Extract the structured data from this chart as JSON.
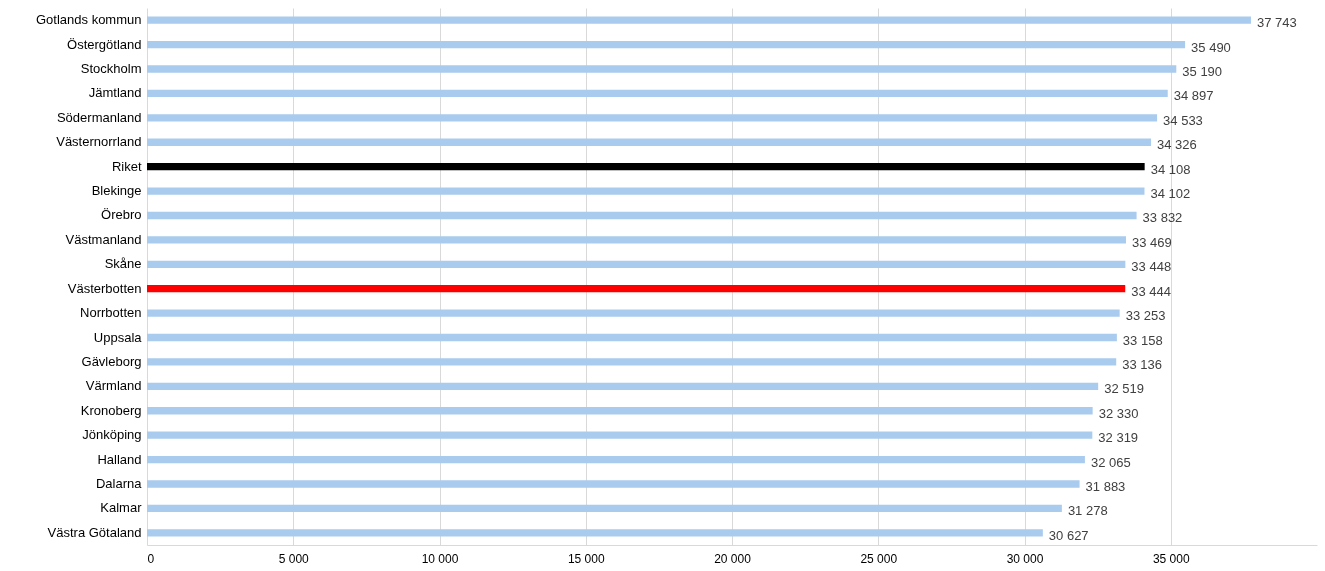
{
  "chart_data": {
    "type": "bar",
    "orientation": "horizontal",
    "categories": [
      "Gotlands kommun",
      "Östergötland",
      "Stockholm",
      "Jämtland",
      "Södermanland",
      "Västernorrland",
      "Riket",
      "Blekinge",
      "Örebro",
      "Västmanland",
      "Skåne",
      "Västerbotten",
      "Norrbotten",
      "Uppsala",
      "Gävleborg",
      "Värmland",
      "Kronoberg",
      "Jönköping",
      "Halland",
      "Dalarna",
      "Kalmar",
      "Västra Götaland"
    ],
    "values": [
      37743,
      35490,
      35190,
      34897,
      34533,
      34326,
      34108,
      34102,
      33832,
      33469,
      33448,
      33444,
      33253,
      33158,
      33136,
      32519,
      32330,
      32319,
      32065,
      31883,
      31278,
      30627
    ],
    "value_labels": [
      "37 743",
      "35 490",
      "35 190",
      "34 897",
      "34 533",
      "34 326",
      "34 108",
      "34 102",
      "33 832",
      "33 469",
      "33 448",
      "33 444",
      "33 253",
      "33 158",
      "33 136",
      "32 519",
      "32 330",
      "32 319",
      "32 065",
      "31 883",
      "31 278",
      "30 627"
    ],
    "colors": [
      "#a9cbee",
      "#a9cbee",
      "#a9cbee",
      "#a9cbee",
      "#a9cbee",
      "#a9cbee",
      "#000000",
      "#a9cbee",
      "#a9cbee",
      "#a9cbee",
      "#a9cbee",
      "#ff0000",
      "#a9cbee",
      "#a9cbee",
      "#a9cbee",
      "#a9cbee",
      "#a9cbee",
      "#a9cbee",
      "#a9cbee",
      "#a9cbee",
      "#a9cbee",
      "#a9cbee"
    ],
    "xticks": [
      0,
      {
        "value": 5000,
        "label": "5 000"
      },
      {
        "value": 10000,
        "label": "10 000"
      },
      {
        "value": 15000,
        "label": "15 000"
      },
      {
        "value": 20000,
        "label": "20 000"
      },
      {
        "value": 25000,
        "label": "25 000"
      },
      {
        "value": 30000,
        "label": "30 000"
      },
      {
        "value": 35000,
        "label": "35 000"
      }
    ],
    "xlim": [
      0,
      40000
    ],
    "grid": "x"
  }
}
